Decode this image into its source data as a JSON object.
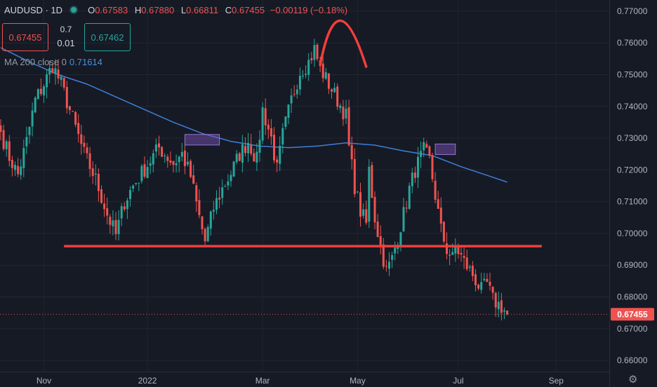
{
  "header": {
    "symbol": "AUDUSD · 1D",
    "status_color": "#26a69a",
    "open_label": "O",
    "open": "0.67583",
    "high_label": "H",
    "high": "0.67880",
    "low_label": "L",
    "low": "0.66811",
    "close_label": "C",
    "close": "0.67455",
    "change": "−0.00119 (−0.18%)"
  },
  "trade_panel": {
    "sell_price": "0.67455",
    "spread": "0.7",
    "lot": "0.01",
    "buy_price": "0.67462"
  },
  "indicator": {
    "label": "MA 200 close 0",
    "value": "0.71614",
    "color": "#3d7fd9"
  },
  "settings_icon": "gear-icon",
  "chart_data": {
    "type": "candlestick",
    "title": "",
    "colors": {
      "up": "#26a69a",
      "down": "#ef5350",
      "ma": "#3d7fd9",
      "annotation": "#f23f3a",
      "zone": "#7e57c2"
    },
    "x_ticks": [
      {
        "label": "Nov",
        "index": 15
      },
      {
        "label": "2022",
        "index": 51
      },
      {
        "label": "Mar",
        "index": 91
      },
      {
        "label": "May",
        "index": 124
      },
      {
        "label": "Jul",
        "index": 159
      },
      {
        "label": "Sep",
        "index": 193
      }
    ],
    "ylim": [
      0.6565,
      0.7735
    ],
    "y_ticks": [
      "0.77000",
      "0.76000",
      "0.75000",
      "0.74000",
      "0.73000",
      "0.72000",
      "0.71000",
      "0.70000",
      "0.69000",
      "0.68000",
      "0.67000",
      "0.66000"
    ],
    "last_price": "0.67455",
    "last_price_value": 0.67455,
    "price_path": [
      [
        0,
        0.732
      ],
      [
        3,
        0.724
      ],
      [
        6,
        0.7185
      ],
      [
        9,
        0.729
      ],
      [
        12,
        0.742
      ],
      [
        15,
        0.747
      ],
      [
        18,
        0.753
      ],
      [
        21,
        0.747
      ],
      [
        25,
        0.736
      ],
      [
        29,
        0.725
      ],
      [
        33,
        0.717
      ],
      [
        37,
        0.706
      ],
      [
        40,
        0.6995
      ],
      [
        43,
        0.71
      ],
      [
        46,
        0.715
      ],
      [
        49,
        0.719
      ],
      [
        52,
        0.723
      ],
      [
        55,
        0.727
      ],
      [
        57,
        0.725
      ],
      [
        60,
        0.722
      ],
      [
        63,
        0.725
      ],
      [
        66,
        0.718
      ],
      [
        69,
        0.705
      ],
      [
        71,
        0.6975
      ],
      [
        74,
        0.708
      ],
      [
        77,
        0.714
      ],
      [
        80,
        0.719
      ],
      [
        83,
        0.725
      ],
      [
        86,
        0.729
      ],
      [
        89,
        0.723
      ],
      [
        91,
        0.739
      ],
      [
        94,
        0.73
      ],
      [
        96,
        0.72
      ],
      [
        98,
        0.731
      ],
      [
        101,
        0.742
      ],
      [
        104,
        0.751
      ],
      [
        107,
        0.754
      ],
      [
        109,
        0.758
      ],
      [
        111,
        0.752
      ],
      [
        114,
        0.747
      ],
      [
        117,
        0.742
      ],
      [
        120,
        0.737
      ],
      [
        121,
        0.727
      ],
      [
        123,
        0.715
      ],
      [
        125,
        0.707
      ],
      [
        127,
        0.703
      ],
      [
        128,
        0.72
      ],
      [
        130,
        0.705
      ],
      [
        132,
        0.696
      ],
      [
        134,
        0.688
      ],
      [
        136,
        0.692
      ],
      [
        138,
        0.699
      ],
      [
        140,
        0.706
      ],
      [
        142,
        0.714
      ],
      [
        144,
        0.72
      ],
      [
        146,
        0.724
      ],
      [
        147,
        0.726
      ],
      [
        149,
        0.723
      ],
      [
        151,
        0.712
      ],
      [
        153,
        0.701
      ],
      [
        155,
        0.695
      ],
      [
        157,
        0.692
      ],
      [
        158,
        0.696
      ],
      [
        161,
        0.691
      ],
      [
        164,
        0.687
      ],
      [
        167,
        0.682
      ],
      [
        169,
        0.684
      ],
      [
        171,
        0.679
      ],
      [
        174,
        0.677
      ],
      [
        176,
        0.67455
      ]
    ],
    "ma200": [
      [
        0,
        0.7585
      ],
      [
        10,
        0.754
      ],
      [
        20,
        0.75
      ],
      [
        30,
        0.747
      ],
      [
        40,
        0.743
      ],
      [
        50,
        0.739
      ],
      [
        60,
        0.735
      ],
      [
        70,
        0.7315
      ],
      [
        80,
        0.729
      ],
      [
        90,
        0.7275
      ],
      [
        100,
        0.727
      ],
      [
        110,
        0.7275
      ],
      [
        120,
        0.7285
      ],
      [
        130,
        0.7278
      ],
      [
        140,
        0.726
      ],
      [
        150,
        0.7245
      ],
      [
        160,
        0.721
      ],
      [
        170,
        0.718
      ],
      [
        176,
        0.71614
      ]
    ],
    "annotations": {
      "support_line": {
        "price": 0.696,
        "from_index": 22,
        "to_index": 188
      },
      "head_arc": {
        "from": [
          111,
          0.753
        ],
        "peak": [
          118,
          0.767
        ],
        "to": [
          127,
          0.7525
        ]
      },
      "zones": [
        {
          "from_index": 64,
          "to_index": 76,
          "low": 0.7285,
          "high": 0.7305
        },
        {
          "from_index": 151,
          "to_index": 158,
          "low": 0.7255,
          "high": 0.7275
        }
      ]
    }
  }
}
